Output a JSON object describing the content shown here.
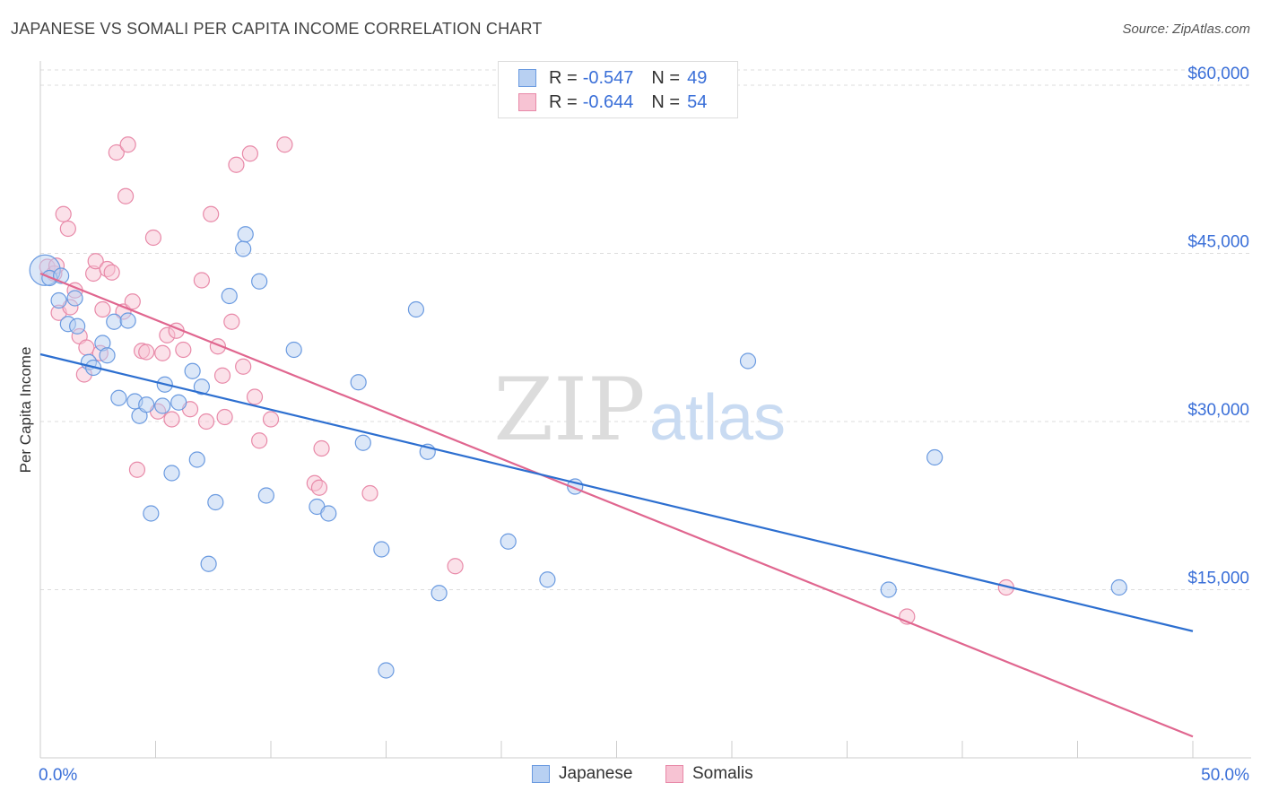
{
  "title": "JAPANESE VS SOMALI PER CAPITA INCOME CORRELATION CHART",
  "source": "Source: ZipAtlas.com",
  "colors": {
    "japanese": "#6a9ae0",
    "japanese_fill": "#b8d0f2",
    "somalis": "#e889a8",
    "somalis_fill": "#f7c3d3",
    "japanese_line": "#2d6fd0",
    "somalis_line": "#e0668f",
    "axis_label": "#3a6fd8"
  },
  "legend": {
    "japanese": {
      "r_label": "R =",
      "r_value": "-0.547",
      "n_label": "N =",
      "n_value": "49"
    },
    "somalis": {
      "r_label": "R =",
      "r_value": "-0.644",
      "n_label": "N =",
      "n_value": "54"
    }
  },
  "bottom_legend": {
    "japanese": "Japanese",
    "somalis": "Somalis"
  },
  "watermark": {
    "zip": "ZIP",
    "atlas": "atlas"
  },
  "chart_data": {
    "type": "scatter",
    "title": "JAPANESE VS SOMALI PER CAPITA INCOME CORRELATION CHART",
    "xlabel": "",
    "ylabel": "Per Capita Income",
    "xlim": [
      0,
      50
    ],
    "ylim": [
      0,
      62000
    ],
    "x_tick_labels": [
      "0.0%",
      "50.0%"
    ],
    "y_ticks": [
      15000,
      30000,
      45000,
      60000
    ],
    "y_tick_labels": [
      "$15,000",
      "$30,000",
      "$45,000",
      "$60,000"
    ],
    "series": [
      {
        "name": "Japanese",
        "points": [
          [
            0.2,
            43500
          ],
          [
            0.4,
            42800
          ],
          [
            0.8,
            40800
          ],
          [
            1.2,
            38700
          ],
          [
            1.6,
            38500
          ],
          [
            2.1,
            35300
          ],
          [
            2.3,
            34800
          ],
          [
            2.7,
            37000
          ],
          [
            2.9,
            35900
          ],
          [
            3.2,
            38900
          ],
          [
            3.4,
            32100
          ],
          [
            3.8,
            39000
          ],
          [
            4.1,
            31800
          ],
          [
            4.3,
            30500
          ],
          [
            4.6,
            31500
          ],
          [
            4.8,
            21800
          ],
          [
            5.3,
            31400
          ],
          [
            5.4,
            33300
          ],
          [
            5.7,
            25400
          ],
          [
            6.0,
            31700
          ],
          [
            6.6,
            34500
          ],
          [
            6.8,
            26600
          ],
          [
            7.0,
            33100
          ],
          [
            7.3,
            17300
          ],
          [
            7.6,
            22800
          ],
          [
            8.2,
            41200
          ],
          [
            8.8,
            45400
          ],
          [
            8.9,
            46700
          ],
          [
            9.5,
            42500
          ],
          [
            9.8,
            23400
          ],
          [
            11.0,
            36400
          ],
          [
            12.0,
            22400
          ],
          [
            12.5,
            21800
          ],
          [
            13.8,
            33500
          ],
          [
            14.0,
            28100
          ],
          [
            14.8,
            18600
          ],
          [
            15.0,
            7800
          ],
          [
            16.3,
            40000
          ],
          [
            16.8,
            27300
          ],
          [
            17.3,
            14700
          ],
          [
            20.3,
            19300
          ],
          [
            22.0,
            15900
          ],
          [
            23.2,
            24200
          ],
          [
            30.7,
            35400
          ],
          [
            36.8,
            15000
          ],
          [
            38.8,
            26800
          ],
          [
            46.8,
            15200
          ],
          [
            1.5,
            41000
          ],
          [
            0.9,
            43000
          ]
        ]
      },
      {
        "name": "Somalis",
        "points": [
          [
            0.3,
            43800
          ],
          [
            0.6,
            43200
          ],
          [
            0.8,
            39700
          ],
          [
            1.0,
            48500
          ],
          [
            1.2,
            47200
          ],
          [
            1.3,
            40200
          ],
          [
            1.5,
            41700
          ],
          [
            1.7,
            37600
          ],
          [
            1.9,
            34200
          ],
          [
            2.0,
            36600
          ],
          [
            2.3,
            43200
          ],
          [
            2.4,
            44300
          ],
          [
            2.6,
            36100
          ],
          [
            2.7,
            40000
          ],
          [
            2.9,
            43600
          ],
          [
            3.1,
            43300
          ],
          [
            3.3,
            54000
          ],
          [
            3.6,
            39800
          ],
          [
            3.7,
            50100
          ],
          [
            3.8,
            54700
          ],
          [
            4.0,
            40700
          ],
          [
            4.2,
            25700
          ],
          [
            4.4,
            36300
          ],
          [
            4.6,
            36200
          ],
          [
            4.9,
            46400
          ],
          [
            5.1,
            30900
          ],
          [
            5.3,
            36100
          ],
          [
            5.5,
            37700
          ],
          [
            5.7,
            30200
          ],
          [
            5.9,
            38100
          ],
          [
            6.2,
            36400
          ],
          [
            6.5,
            31100
          ],
          [
            7.0,
            42600
          ],
          [
            7.2,
            30000
          ],
          [
            7.4,
            48500
          ],
          [
            7.7,
            36700
          ],
          [
            7.9,
            34100
          ],
          [
            8.0,
            30400
          ],
          [
            8.3,
            38900
          ],
          [
            8.5,
            52900
          ],
          [
            8.8,
            34900
          ],
          [
            9.1,
            53900
          ],
          [
            9.3,
            32200
          ],
          [
            9.5,
            28300
          ],
          [
            10.0,
            30200
          ],
          [
            10.6,
            54700
          ],
          [
            11.9,
            24500
          ],
          [
            12.1,
            24100
          ],
          [
            12.2,
            27600
          ],
          [
            14.3,
            23600
          ],
          [
            18.0,
            17100
          ],
          [
            37.6,
            12600
          ],
          [
            41.9,
            15200
          ],
          [
            0.7,
            43900
          ]
        ]
      }
    ],
    "trend_lines": [
      {
        "name": "Japanese",
        "x": [
          0,
          50
        ],
        "y": [
          36000,
          11300
        ]
      },
      {
        "name": "Somalis",
        "x": [
          0,
          50
        ],
        "y": [
          43200,
          1900
        ]
      }
    ]
  }
}
